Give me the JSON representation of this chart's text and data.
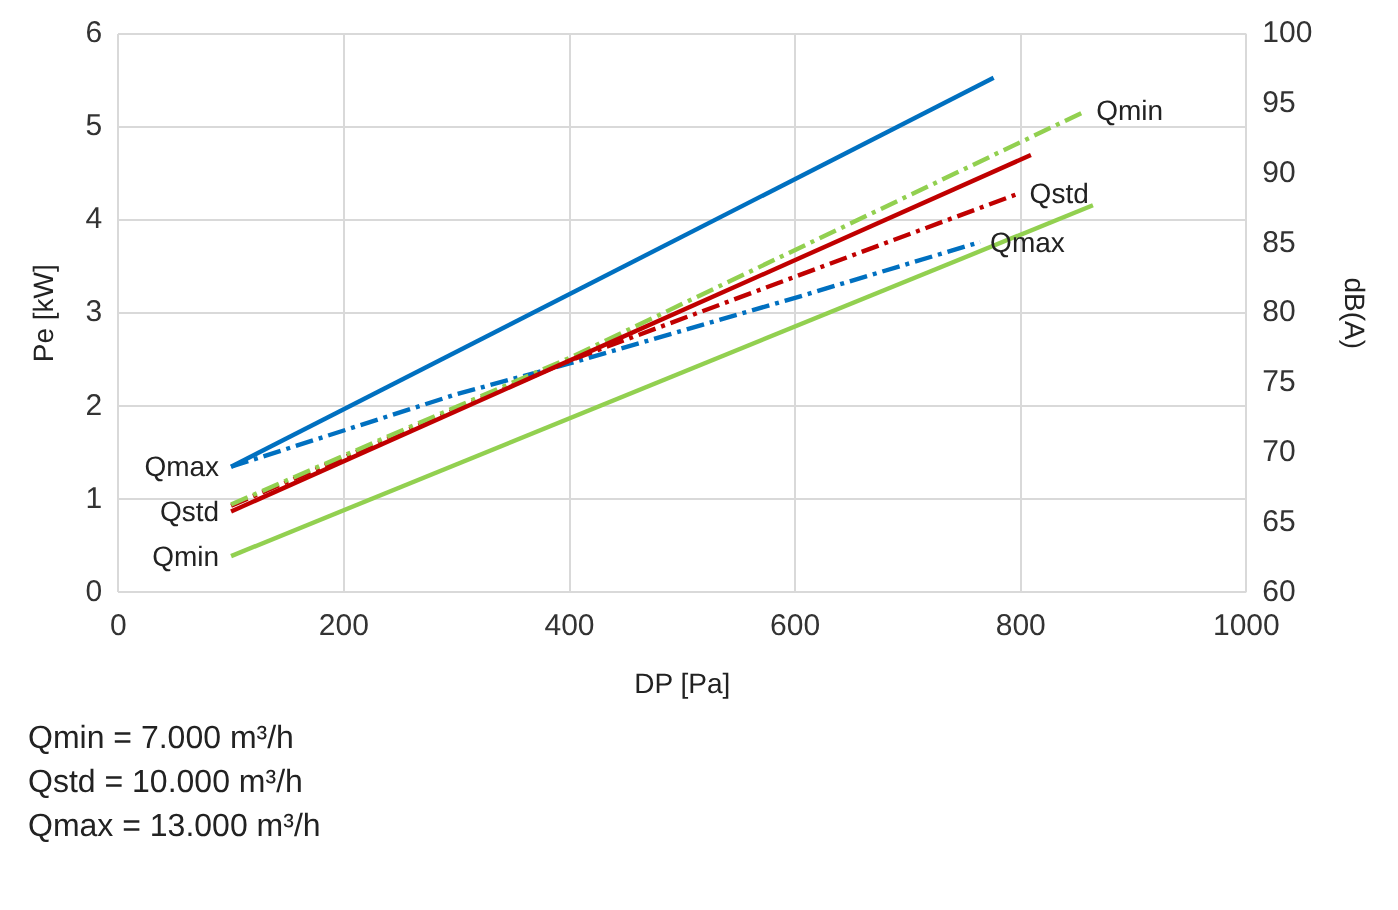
{
  "chart_data": {
    "type": "line",
    "xlabel": "DP [Pa]",
    "ylabel": "Pe [kW]",
    "y2label": "dB(A)",
    "xlim": [
      0,
      1000
    ],
    "xticks": [
      0,
      200,
      400,
      600,
      800,
      1000
    ],
    "ylim": [
      0,
      6
    ],
    "yticks": [
      0,
      1,
      2,
      3,
      4,
      5,
      6
    ],
    "y2lim": [
      60,
      100
    ],
    "y2ticks": [
      60,
      65,
      70,
      75,
      80,
      85,
      90,
      95,
      100
    ],
    "grid": true,
    "legend": false,
    "marker": "none",
    "series": [
      {
        "name": "Qmax",
        "color": "#0070c0",
        "line_style": "solid",
        "axis": "y",
        "x": [
          100,
          776
        ],
        "values": [
          1.35,
          5.53
        ]
      },
      {
        "name": "Qstd",
        "color": "#c00000",
        "line_style": "solid",
        "axis": "y",
        "x": [
          100,
          809
        ],
        "values": [
          0.87,
          4.7
        ]
      },
      {
        "name": "Qmin",
        "color": "#92d050",
        "line_style": "solid",
        "axis": "y",
        "x": [
          100,
          864
        ],
        "values": [
          0.39,
          4.16
        ]
      },
      {
        "name": "Qmin",
        "color": "#92d050",
        "line_style": "dashed",
        "axis": "y2",
        "x": [
          100,
          400,
          858
        ],
        "values": [
          66.3,
          76.8,
          94.5
        ]
      },
      {
        "name": "Qstd",
        "color": "#c00000",
        "line_style": "dashed",
        "axis": "y2",
        "x": [
          100,
          400,
          799
        ],
        "values": [
          66.2,
          76.6,
          88.6
        ]
      },
      {
        "name": "Qmax",
        "color": "#0070c0",
        "line_style": "dashed",
        "axis": "y2",
        "x": [
          100,
          300,
          400,
          600,
          764
        ],
        "values": [
          69.0,
          74.2,
          76.4,
          81.1,
          85.1
        ]
      }
    ],
    "annotations": [
      "Qmin = 7.000 m³/h",
      "Qstd = 10.000 m³/h",
      "Qmax = 13.000 m³/h"
    ]
  }
}
